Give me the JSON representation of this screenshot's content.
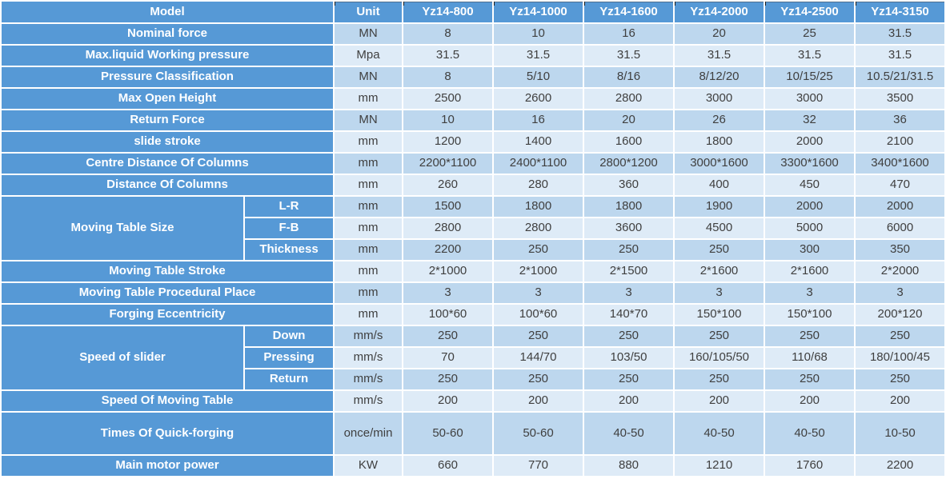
{
  "chart_data": {
    "type": "table",
    "header": {
      "model_label": "Model",
      "unit_label": "Unit",
      "models": [
        "Yz14-800",
        "Yz14-1000",
        "Yz14-1600",
        "Yz14-2000",
        "Yz14-2500",
        "Yz14-3150"
      ]
    },
    "rows": [
      {
        "label": "Nominal force",
        "unit": "MN",
        "values": [
          "8",
          "10",
          "16",
          "20",
          "25",
          "31.5"
        ]
      },
      {
        "label": "Max.liquid Working pressure",
        "unit": "Mpa",
        "values": [
          "31.5",
          "31.5",
          "31.5",
          "31.5",
          "31.5",
          "31.5"
        ]
      },
      {
        "label": "Pressure Classification",
        "unit": "MN",
        "values": [
          "8",
          "5/10",
          "8/16",
          "8/12/20",
          "10/15/25",
          "10.5/21/31.5"
        ]
      },
      {
        "label": "Max Open Height",
        "unit": "mm",
        "values": [
          "2500",
          "2600",
          "2800",
          "3000",
          "3000",
          "3500"
        ]
      },
      {
        "label": "Return Force",
        "unit": "MN",
        "values": [
          "10",
          "16",
          "20",
          "26",
          "32",
          "36"
        ]
      },
      {
        "label": "slide stroke",
        "unit": "mm",
        "values": [
          "1200",
          "1400",
          "1600",
          "1800",
          "2000",
          "2100"
        ]
      },
      {
        "label": "Centre Distance Of Columns",
        "unit": "mm",
        "values": [
          "2200*1100",
          "2400*1100",
          "2800*1200",
          "3000*1600",
          "3300*1600",
          "3400*1600"
        ]
      },
      {
        "label": "Distance Of Columns",
        "unit": "mm",
        "values": [
          "260",
          "280",
          "360",
          "400",
          "450",
          "470"
        ]
      },
      {
        "group": "Moving Table Size",
        "group_span": 3,
        "sub": "L-R",
        "unit": "mm",
        "values": [
          "1500",
          "1800",
          "1800",
          "1900",
          "2000",
          "2000"
        ]
      },
      {
        "sub": "F-B",
        "unit": "mm",
        "values": [
          "2800",
          "2800",
          "3600",
          "4500",
          "5000",
          "6000"
        ]
      },
      {
        "sub": "Thickness",
        "unit": "mm",
        "values": [
          "2200",
          "250",
          "250",
          "250",
          "300",
          "350"
        ]
      },
      {
        "label": "Moving Table Stroke",
        "unit": "mm",
        "values": [
          "2*1000",
          "2*1000",
          "2*1500",
          "2*1600",
          "2*1600",
          "2*2000"
        ]
      },
      {
        "label": "Moving Table Procedural Place",
        "unit": "mm",
        "values": [
          "3",
          "3",
          "3",
          "3",
          "3",
          "3"
        ]
      },
      {
        "label": "Forging Eccentricity",
        "unit": "mm",
        "values": [
          "100*60",
          "100*60",
          "140*70",
          "150*100",
          "150*100",
          "200*120"
        ]
      },
      {
        "group": "Speed of slider",
        "group_span": 3,
        "sub": "Down",
        "unit": "mm/s",
        "values": [
          "250",
          "250",
          "250",
          "250",
          "250",
          "250"
        ]
      },
      {
        "sub": "Pressing",
        "unit": "mm/s",
        "values": [
          "70",
          "144/70",
          "103/50",
          "160/105/50",
          "110/68",
          "180/100/45"
        ]
      },
      {
        "sub": "Return",
        "unit": "mm/s",
        "values": [
          "250",
          "250",
          "250",
          "250",
          "250",
          "250"
        ]
      },
      {
        "label": "Speed Of Moving Table",
        "unit": "mm/s",
        "values": [
          "200",
          "200",
          "200",
          "200",
          "200",
          "200"
        ]
      },
      {
        "label": "Times Of Quick-forging",
        "unit": "once/min",
        "values": [
          "50-60",
          "50-60",
          "40-50",
          "40-50",
          "40-50",
          "10-50"
        ],
        "tall": true
      },
      {
        "label": "Main motor power",
        "unit": "KW",
        "values": [
          "660",
          "770",
          "880",
          "1210",
          "1760",
          "2200"
        ]
      }
    ]
  },
  "colors": {
    "label_blue": "#5699D6",
    "row_shade_dark": "#BDD7EE",
    "row_shade_light": "#DEEBF7",
    "label_text": "#FFFFFF",
    "value_text": "#3F3F3F",
    "grid_white": "#FFFFFF",
    "tick_black": "#1A1A1A"
  }
}
